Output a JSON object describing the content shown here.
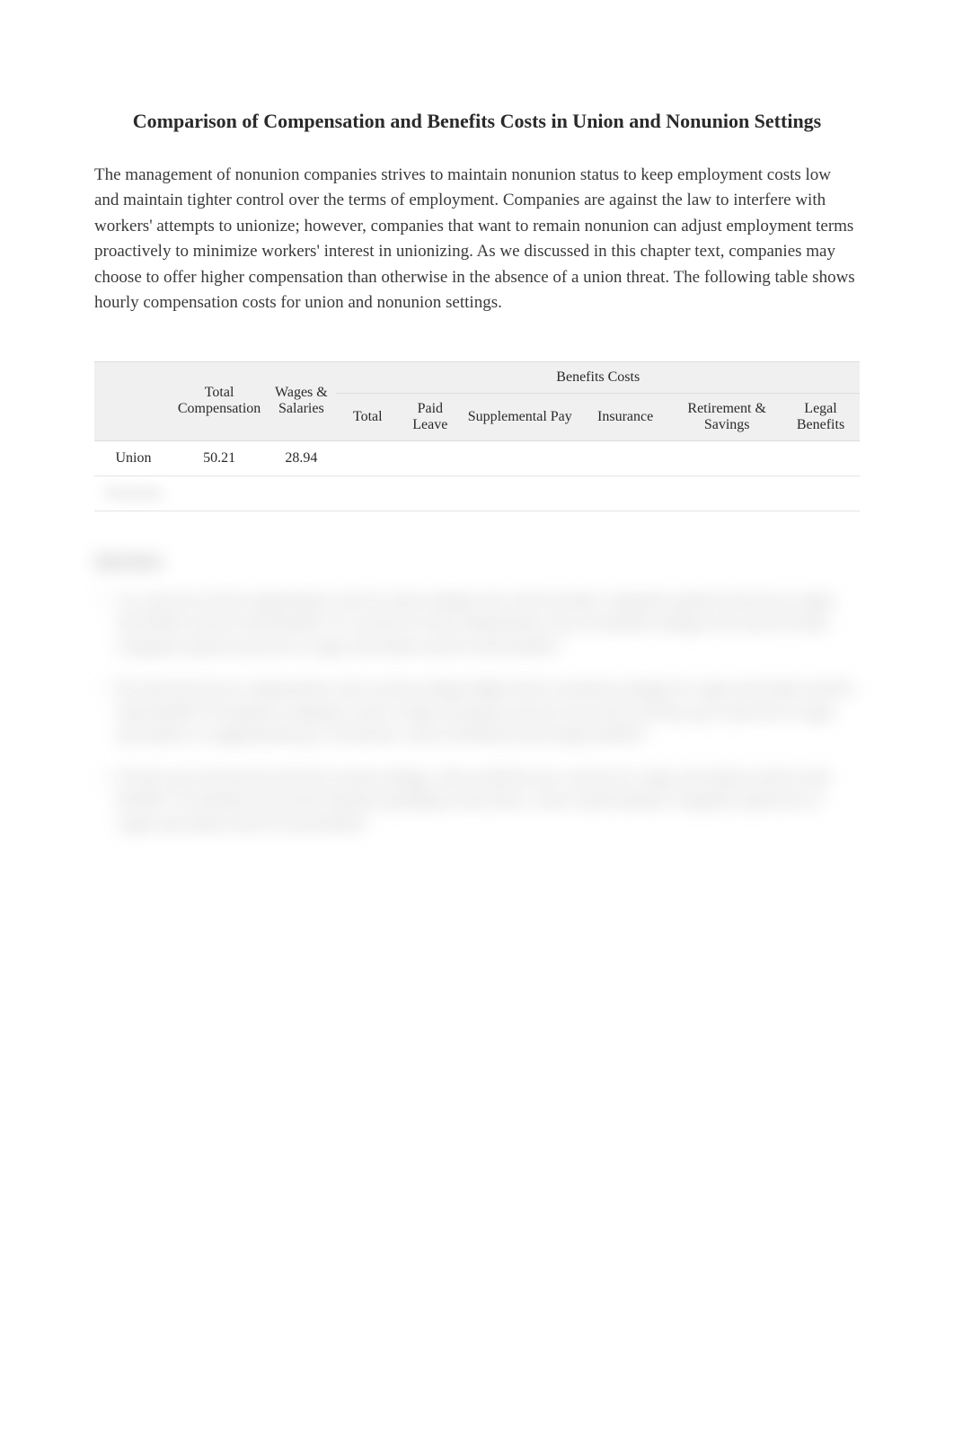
{
  "title": "Comparison of Compensation and Benefits Costs in Union and Nonunion Settings",
  "intro": "The management of nonunion companies strives to maintain nonunion status to keep employment costs low and maintain tighter control over the terms of employment. Companies are against the law to interfere with workers' attempts to unionize; however, companies that want to remain nonunion can adjust employment terms proactively to minimize workers' interest in unionizing. As we discussed in this chapter text, companies may choose to offer higher compensation than otherwise in the absence of a union threat. The following table shows hourly compensation costs for union and nonunion settings.",
  "table": {
    "headers_row1": {
      "empty": "",
      "total_comp": "Total Compensation",
      "wages": "Wages & Salaries",
      "benefits": "Benefits Costs"
    },
    "headers_row2": {
      "total": "Total",
      "paid_leave": "Paid Leave",
      "supplemental": "Supplemental Pay",
      "insurance": "Insurance",
      "retirement": "Retirement & Savings",
      "legal": "Legal Benefits"
    },
    "rows": [
      {
        "label": "Union",
        "total_comp": "50.21",
        "wages": "28.94",
        "total": "",
        "paid_leave": "",
        "supplemental": "",
        "insurance": "",
        "retirement": "",
        "legal": ""
      },
      {
        "label": "Nonunion",
        "total_comp": "",
        "wages": "",
        "total": "",
        "paid_leave": "",
        "supplemental": "",
        "insurance": "",
        "retirement": "",
        "legal": ""
      }
    ]
  },
  "questions": {
    "heading": "Questions",
    "items": [
      "As a percent of total compensation costs for union settings, how much do these companies spend in percent on wages and salaries and for total benefits? As a percent of total compensation costs in nonunion settings, how much do these companies spend in percent on wages and salaries and for total benefits?",
      "By what percent are compensation costs in union settings higher than in nonunion settings for wages and salaries and for total benefits? If nonunion companies want to reduce the gap by percent, how much will they pay in percent in wages and salaries, in supplemental pay, in insurance, and in retirement and savings benefits?",
      "If total cost in increase by percent in union settings, what would the new costs be for wages and salaries and for total benefits? To maintain the percent reduction spending in item above, what would nonunion companies spend new in wages and salaries and for total benefits?"
    ]
  },
  "styling": {
    "background_color": "#ffffff",
    "text_color": "#333333",
    "title_fontsize": 22,
    "body_fontsize": 19,
    "table_fontsize": 16,
    "table_header_bg": "#f0f0f0",
    "table_border_color": "#dddddd",
    "blur_amount": 8
  }
}
